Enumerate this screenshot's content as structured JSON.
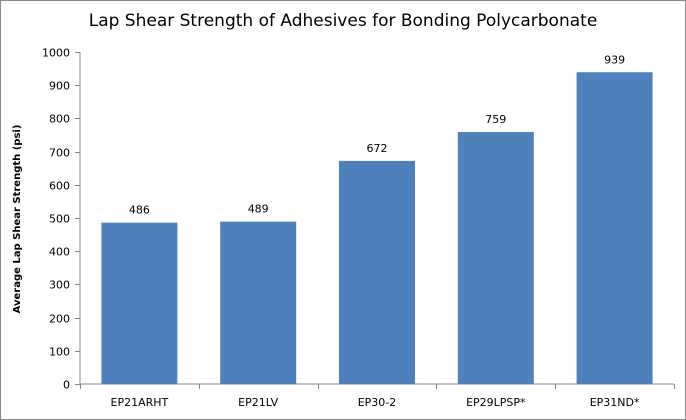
{
  "chart_data": {
    "type": "bar",
    "title": "Lap Shear Strength of Adhesives for Bonding Polycarbonate",
    "xlabel": "",
    "ylabel": "Average Lap Shear Strength (psi)",
    "categories": [
      "EP21ARHT",
      "EP21LV",
      "EP30-2",
      "EP29LPSP*",
      "EP31ND*"
    ],
    "values": [
      486,
      489,
      672,
      759,
      939
    ],
    "data_labels": [
      "486",
      "489",
      "672",
      "759",
      "939"
    ],
    "ylim": [
      0,
      1000
    ],
    "yticks": [
      "0",
      "100",
      "200",
      "300",
      "400",
      "500",
      "600",
      "700",
      "800",
      "900",
      "1000"
    ],
    "grid": false,
    "legend": "none",
    "bar_color": "#4F81BD"
  }
}
